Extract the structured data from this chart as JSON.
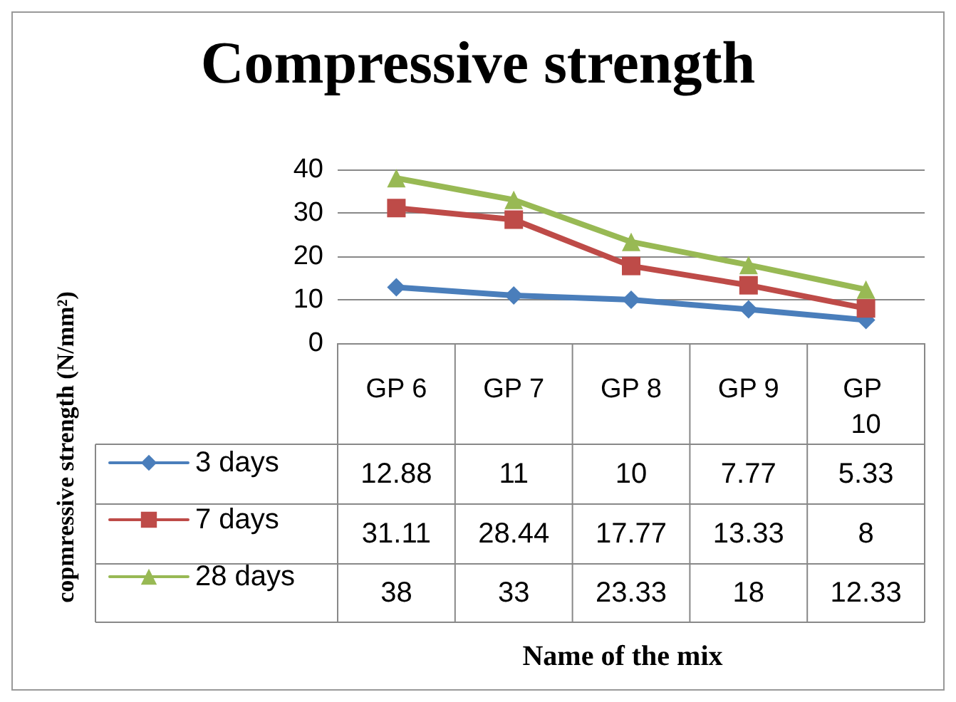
{
  "chart_data": {
    "type": "line",
    "title": "Compressive strength",
    "annotations": [
      "copmressive strength (N/mm²)",
      "Name of the mix"
    ],
    "categories": [
      "GP 6",
      "GP 7",
      "GP 8",
      "GP 9",
      "GP 10"
    ],
    "series": [
      {
        "name": "3 days",
        "color": "#4a7ebb",
        "marker": "diamond",
        "values": [
          12.88,
          11,
          10,
          7.77,
          5.33
        ]
      },
      {
        "name": "7 days",
        "color": "#be4b48",
        "marker": "square",
        "values": [
          31.11,
          28.44,
          17.77,
          13.33,
          8
        ]
      },
      {
        "name": "28 days",
        "color": "#98b954",
        "marker": "triangle",
        "values": [
          38,
          33,
          23.33,
          18,
          12.33
        ]
      }
    ],
    "ylim": [
      0,
      40
    ],
    "yticks": [
      0,
      10,
      20,
      30,
      40
    ],
    "grid": "y",
    "legend": "bottom",
    "data_labels": true
  }
}
